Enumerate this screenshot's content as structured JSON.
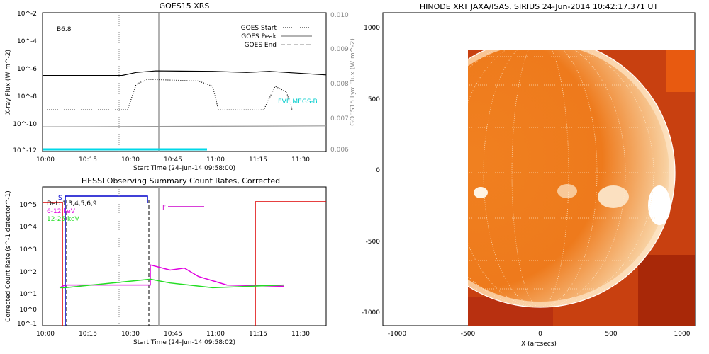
{
  "chart_data": [
    {
      "type": "line",
      "title": "GOES15 XRS",
      "xlabel": "Start Time (24-Jun-14 09:58:00)",
      "ylabel": "X-ray Flux (W m^-2)",
      "ylabel_right": "GOES15 Lyα Flux (W m^-2)",
      "xlim": [
        "10:00",
        "11:40"
      ],
      "x_ticks": [
        "10:00",
        "10:15",
        "10:30",
        "10:45",
        "11:00",
        "11:15",
        "11:30"
      ],
      "y_ticks": [
        "10^-2",
        "10^-4",
        "10^-6",
        "10^-8",
        "10^-10",
        "10^-12"
      ],
      "y_ticks_right": [
        "0.010",
        "0.009",
        "0.008",
        "0.007",
        "0.006"
      ],
      "class_label": "B6.8",
      "legend": [
        {
          "label": "GOES Start",
          "style": "dotted"
        },
        {
          "label": "GOES Peak",
          "style": "solid"
        },
        {
          "label": "GOES End",
          "style": "dashed"
        }
      ],
      "annotation": "EVE MEGS-B",
      "markers_minutes": {
        "start": 27,
        "peak": 41
      },
      "series": [
        {
          "name": "long-channel",
          "color": "#000000",
          "points": [
            [
              0,
              3e-07
            ],
            [
              28,
              3e-07
            ],
            [
              33,
              5e-07
            ],
            [
              40,
              6.5e-07
            ],
            [
              60,
              6e-07
            ],
            [
              72,
              5e-07
            ],
            [
              80,
              6e-07
            ],
            [
              100,
              3.3e-07
            ]
          ]
        },
        {
          "name": "short-channel",
          "color": "#000000",
          "points": [
            [
              0,
              1e-09
            ],
            [
              30,
              1e-09
            ],
            [
              33,
              7e-08
            ],
            [
              37,
              1.6e-07
            ],
            [
              55,
              1.2e-07
            ],
            [
              60,
              5e-08
            ],
            [
              62,
              1e-09
            ],
            [
              78,
              1e-09
            ],
            [
              82,
              5e-08
            ],
            [
              86,
              2e-08
            ],
            [
              88,
              1e-09
            ]
          ]
        },
        {
          "name": "Lyman-alpha",
          "color": "#999999",
          "points": [
            [
              0,
              6e-11
            ],
            [
              100,
              7e-11
            ]
          ]
        }
      ]
    },
    {
      "type": "line",
      "title": "HESSI Observing Summary Count Rates, Corrected",
      "xlabel": "Start Time (24-Jun-14 09:58:02)",
      "ylabel": "Corrected Count Rate (s^-1 detector^-1)",
      "xlim": [
        "10:00",
        "11:40"
      ],
      "x_ticks": [
        "10:00",
        "10:15",
        "10:30",
        "10:45",
        "11:00",
        "11:15",
        "11:30"
      ],
      "y_ticks": [
        "10^5",
        "10^4",
        "10^3",
        "10^2",
        "10^1",
        "10^0",
        "10^-1"
      ],
      "legend": [
        {
          "label": "Det: 1,3,4,5,6,9",
          "color": "#000000"
        },
        {
          "label": "6-12 keV",
          "color": "#e000e0"
        },
        {
          "label": "12-25 keV",
          "color": "#22dd22"
        }
      ],
      "flags": [
        {
          "label": "S",
          "color": "#0000cc"
        },
        {
          "label": "F",
          "color": "#cc00cc"
        }
      ],
      "series": [
        {
          "name": "6-12 keV",
          "color": "#e000e0",
          "points": [
            [
              6,
              6
            ],
            [
              8,
              8
            ],
            [
              38,
              8
            ],
            [
              38,
              70
            ],
            [
              45,
              40
            ],
            [
              50,
              50
            ],
            [
              55,
              20
            ],
            [
              65,
              8
            ],
            [
              85,
              7
            ]
          ]
        },
        {
          "name": "12-25 keV",
          "color": "#22dd22",
          "points": [
            [
              6,
              6
            ],
            [
              8,
              6
            ],
            [
              38,
              15
            ],
            [
              45,
              10
            ],
            [
              60,
              6
            ],
            [
              85,
              8
            ]
          ]
        }
      ]
    },
    {
      "type": "heatmap",
      "title": "HINODE XRT JAXA/ISAS, SIRIUS 24-Jun-2014 10:42:17.371 UT",
      "xlabel": "X (arcsecs)",
      "ylabel": "",
      "x_ticks": [
        "-1000",
        "-500",
        "0",
        "500",
        "1000"
      ],
      "y_ticks": [
        "1000",
        "500",
        "0",
        "-500",
        "-1000"
      ],
      "xlim": [
        -1100,
        1100
      ],
      "ylim": [
        -1100,
        1100
      ]
    }
  ]
}
